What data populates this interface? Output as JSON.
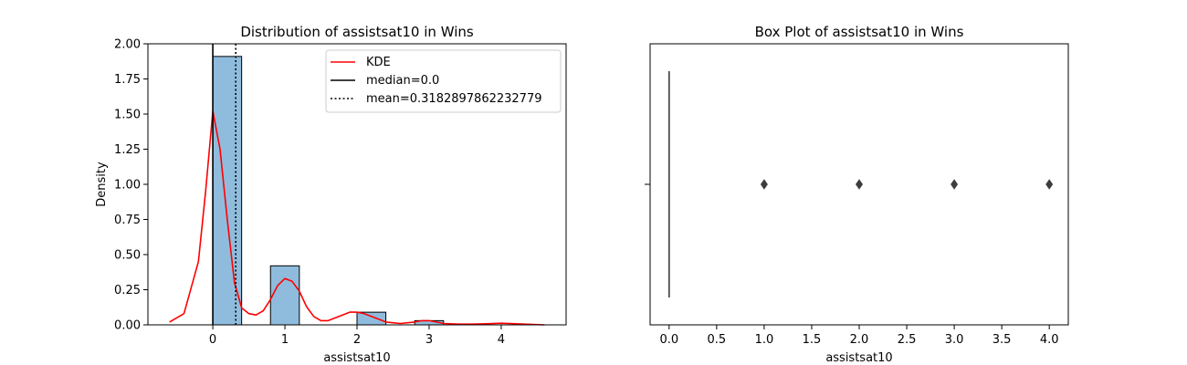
{
  "chart_data": [
    {
      "type": "histogram",
      "title": "Distribution of assistsat10 in Wins",
      "xlabel": "assistsat10",
      "ylabel": "Density",
      "xlim": [
        -0.9,
        4.9
      ],
      "ylim": [
        0,
        2.0
      ],
      "x_ticks": [
        "0",
        "1",
        "2",
        "3",
        "4"
      ],
      "y_ticks": [
        "0.00",
        "0.25",
        "0.50",
        "0.75",
        "1.00",
        "1.25",
        "1.50",
        "1.75",
        "2.00"
      ],
      "bins": [
        {
          "start": 0.0,
          "end": 0.4,
          "density": 1.91
        },
        {
          "start": 0.8,
          "end": 1.2,
          "density": 0.42
        },
        {
          "start": 2.0,
          "end": 2.4,
          "density": 0.09
        },
        {
          "start": 2.8,
          "end": 3.2,
          "density": 0.03
        }
      ],
      "bar_color": "#8fbcdd",
      "kde": {
        "name": "KDE",
        "color": "#ff0000",
        "x": [
          -0.6,
          -0.4,
          -0.2,
          -0.1,
          0.0,
          0.1,
          0.2,
          0.3,
          0.4,
          0.5,
          0.6,
          0.7,
          0.8,
          0.9,
          1.0,
          1.1,
          1.2,
          1.3,
          1.4,
          1.5,
          1.6,
          1.7,
          1.8,
          1.9,
          2.0,
          2.1,
          2.2,
          2.3,
          2.4,
          2.6,
          2.8,
          2.9,
          3.0,
          3.1,
          3.2,
          3.4,
          3.6,
          3.8,
          4.0,
          4.2,
          4.6
        ],
        "y": [
          0.02,
          0.08,
          0.45,
          0.95,
          1.52,
          1.25,
          0.75,
          0.3,
          0.12,
          0.08,
          0.07,
          0.1,
          0.18,
          0.28,
          0.33,
          0.31,
          0.24,
          0.13,
          0.06,
          0.03,
          0.03,
          0.05,
          0.07,
          0.09,
          0.09,
          0.08,
          0.06,
          0.04,
          0.02,
          0.01,
          0.02,
          0.03,
          0.03,
          0.02,
          0.01,
          0.005,
          0.005,
          0.008,
          0.012,
          0.008,
          0.0
        ]
      },
      "median": {
        "label": "median=0.0",
        "value": 0.0,
        "color": "#000000"
      },
      "mean": {
        "label": "mean=0.3182897862232779",
        "value": 0.3182897862232779,
        "color": "#000000"
      },
      "legend": {
        "location": "top-right",
        "entries": [
          "KDE",
          "median=0.0",
          "mean=0.3182897862232779"
        ]
      }
    },
    {
      "type": "box",
      "title": "Box Plot of assistsat10 in Wins",
      "xlabel": "assistsat10",
      "xlim": [
        -0.2,
        4.2
      ],
      "x_ticks": [
        "0.0",
        "0.5",
        "1.0",
        "1.5",
        "2.0",
        "2.5",
        "3.0",
        "3.5",
        "4.0"
      ],
      "box": {
        "q1": 0.0,
        "median": 0.0,
        "q3": 0.0,
        "whisker_low": 0.0,
        "whisker_high": 0.0
      },
      "outliers": [
        1.0,
        2.0,
        3.0,
        4.0
      ],
      "color": "#3d3d3d"
    }
  ]
}
